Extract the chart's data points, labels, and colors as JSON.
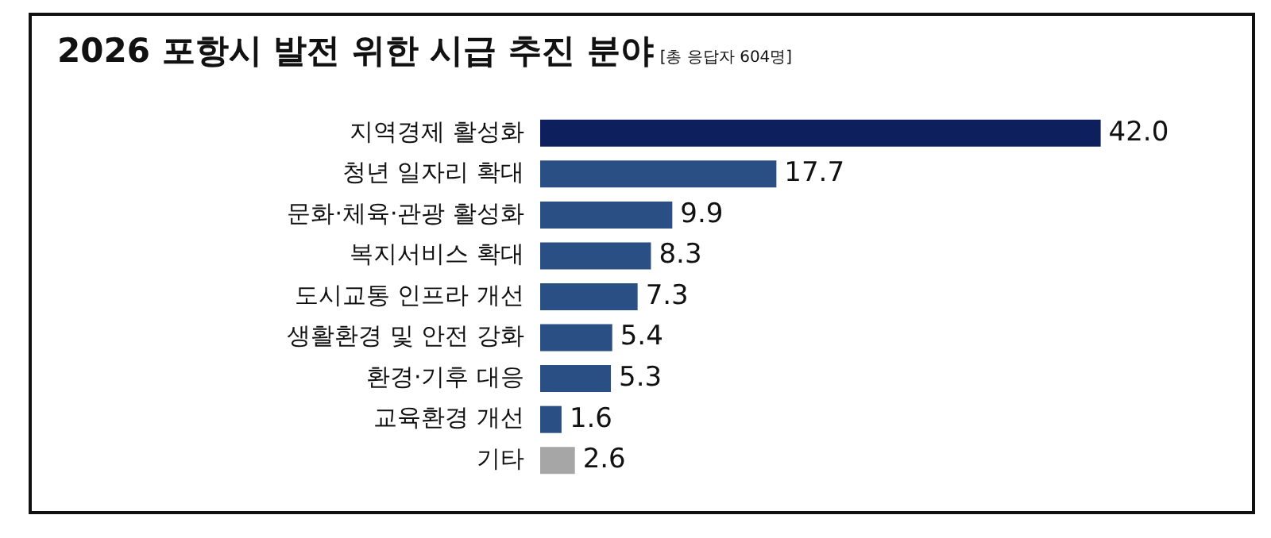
{
  "chart_data": {
    "type": "bar",
    "orientation": "horizontal",
    "title": "2026 포항시 발전 위한 시급 추진 분야",
    "subtitle": "[총 응답자 604명]",
    "categories": [
      "지역경제 활성화",
      "청년 일자리 확대",
      "문화·체육·관광 활성화",
      "복지서비스 확대",
      "도시교통 인프라 개선",
      "생활환경 및 안전 강화",
      "환경·기후 대응",
      "교육환경 개선",
      "기타"
    ],
    "values": [
      42.0,
      17.7,
      9.9,
      8.3,
      7.3,
      5.4,
      5.3,
      1.6,
      2.6
    ],
    "colors": [
      "#0d1f5c",
      "#2a4f85",
      "#2a4f85",
      "#2a4f85",
      "#2a4f85",
      "#2a4f85",
      "#2a4f85",
      "#2a4f85",
      "#a6a6a6"
    ],
    "value_labels": [
      "42.0",
      "17.7",
      "9.9",
      "8.3",
      "7.3",
      "5.4",
      "5.3",
      "1.6",
      "2.6"
    ],
    "grid": false,
    "legend": false
  }
}
